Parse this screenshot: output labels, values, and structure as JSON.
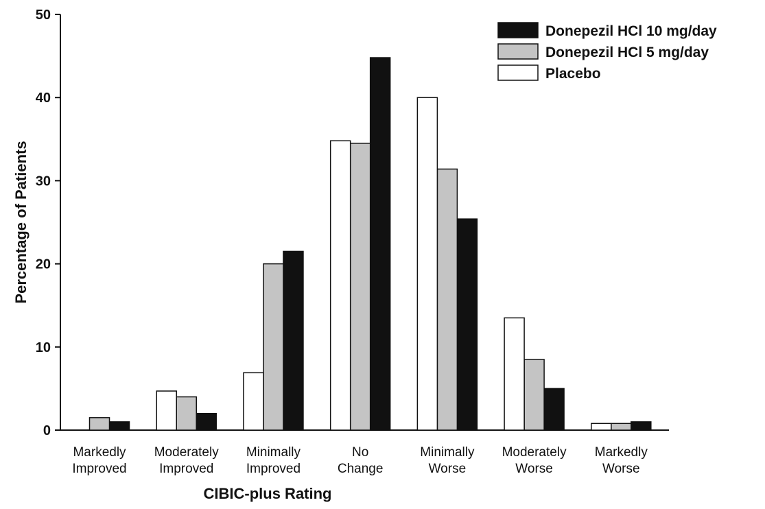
{
  "chart_data": {
    "type": "bar",
    "xlabel": "CIBIC-plus Rating",
    "ylabel": "Percentage of Patients",
    "categories": [
      "Markedly Improved",
      "Moderately Improved",
      "Minimally Improved",
      "No Change",
      "Minimally Worse",
      "Moderately Worse",
      "Markedly Worse"
    ],
    "series": [
      {
        "name": "Donepezil HCl 10 mg/day",
        "color": "#111111",
        "values": [
          1.0,
          2.0,
          21.5,
          44.8,
          25.4,
          5.0,
          1.0
        ]
      },
      {
        "name": "Donepezil HCl 5 mg/day",
        "color": "#c4c4c4",
        "values": [
          1.5,
          4.0,
          20.0,
          34.5,
          31.4,
          8.5,
          0.8
        ]
      },
      {
        "name": "Placebo",
        "color": "#ffffff",
        "values": [
          0,
          4.7,
          6.9,
          34.8,
          40.0,
          13.5,
          0.8
        ]
      }
    ],
    "ylim": [
      0,
      50
    ],
    "yticks": [
      0,
      10,
      20,
      30,
      40,
      50
    ],
    "legend": "upper right"
  }
}
